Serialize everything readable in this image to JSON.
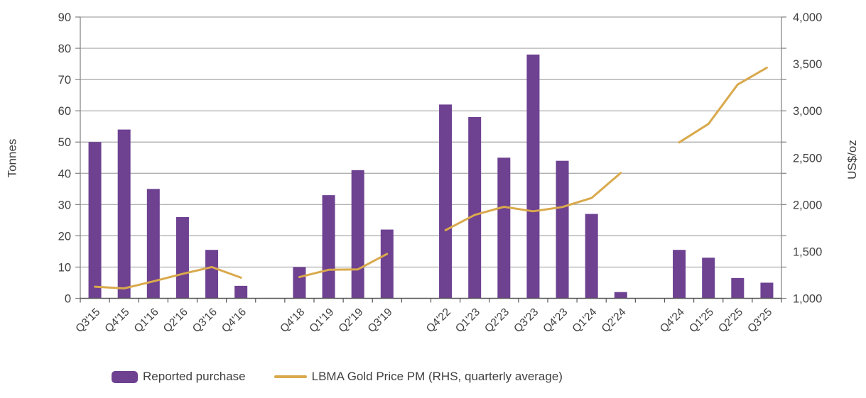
{
  "chart_data": {
    "type": "bar+line combo",
    "title": "",
    "left_axis": {
      "title": "Tonnes",
      "min": 0,
      "max": 90,
      "tick_step": 10,
      "tick_labels": [
        "0",
        "10",
        "20",
        "30",
        "40",
        "50",
        "60",
        "70",
        "80",
        "90"
      ]
    },
    "right_axis": {
      "title": "US$/oz",
      "min": 1000,
      "max": 4000,
      "label_step": 500,
      "tick_labels": [
        "1,000",
        "1,500",
        "2,000",
        "2,500",
        "3,000",
        "3,500",
        "4,000"
      ]
    },
    "grid": true,
    "legend_position": "bottom",
    "bar_series_name": "Reported purchase",
    "line_series_name": "LBMA Gold Price PM (RHS, quarterly average)",
    "groups": [
      {
        "categories": [
          "Q3'15",
          "Q4'15",
          "Q1'16",
          "Q2'16",
          "Q3'16",
          "Q4'16"
        ],
        "bars": [
          50,
          54,
          35,
          26,
          15.5,
          4
        ],
        "line": [
          1124,
          1106,
          1181,
          1260,
          1334,
          1220
        ]
      },
      {
        "categories": [
          "Q4'18",
          "Q1'19",
          "Q2'19",
          "Q3'19"
        ],
        "bars": [
          10,
          33,
          41,
          22
        ],
        "line": [
          1226,
          1304,
          1309,
          1474
        ]
      },
      {
        "categories": [
          "Q4'22",
          "Q1'23",
          "Q2'23",
          "Q3'23",
          "Q4'23",
          "Q1'24",
          "Q2'24"
        ],
        "bars": [
          62,
          58,
          45,
          78,
          44,
          27,
          2
        ],
        "line": [
          1726,
          1890,
          1976,
          1928,
          1974,
          2070,
          2338
        ]
      },
      {
        "categories": [
          "Q4'24",
          "Q1'25",
          "Q2'25",
          "Q3'25"
        ],
        "bars": [
          15.5,
          13,
          6.5,
          5
        ],
        "line": [
          2663,
          2860,
          3280,
          3460
        ]
      }
    ]
  },
  "legend": {
    "items": [
      {
        "label": "Reported purchase",
        "swatch": "bar"
      },
      {
        "label": "LBMA Gold Price PM (RHS, quarterly average)",
        "swatch": "line"
      }
    ]
  },
  "colors": {
    "bar": "#6E4191",
    "line": "#D9A94C",
    "grid": "#A6A6A6",
    "axis": "#595959",
    "minor_axis": "#808080",
    "text": "#404040",
    "background": "#FFFFFF"
  }
}
